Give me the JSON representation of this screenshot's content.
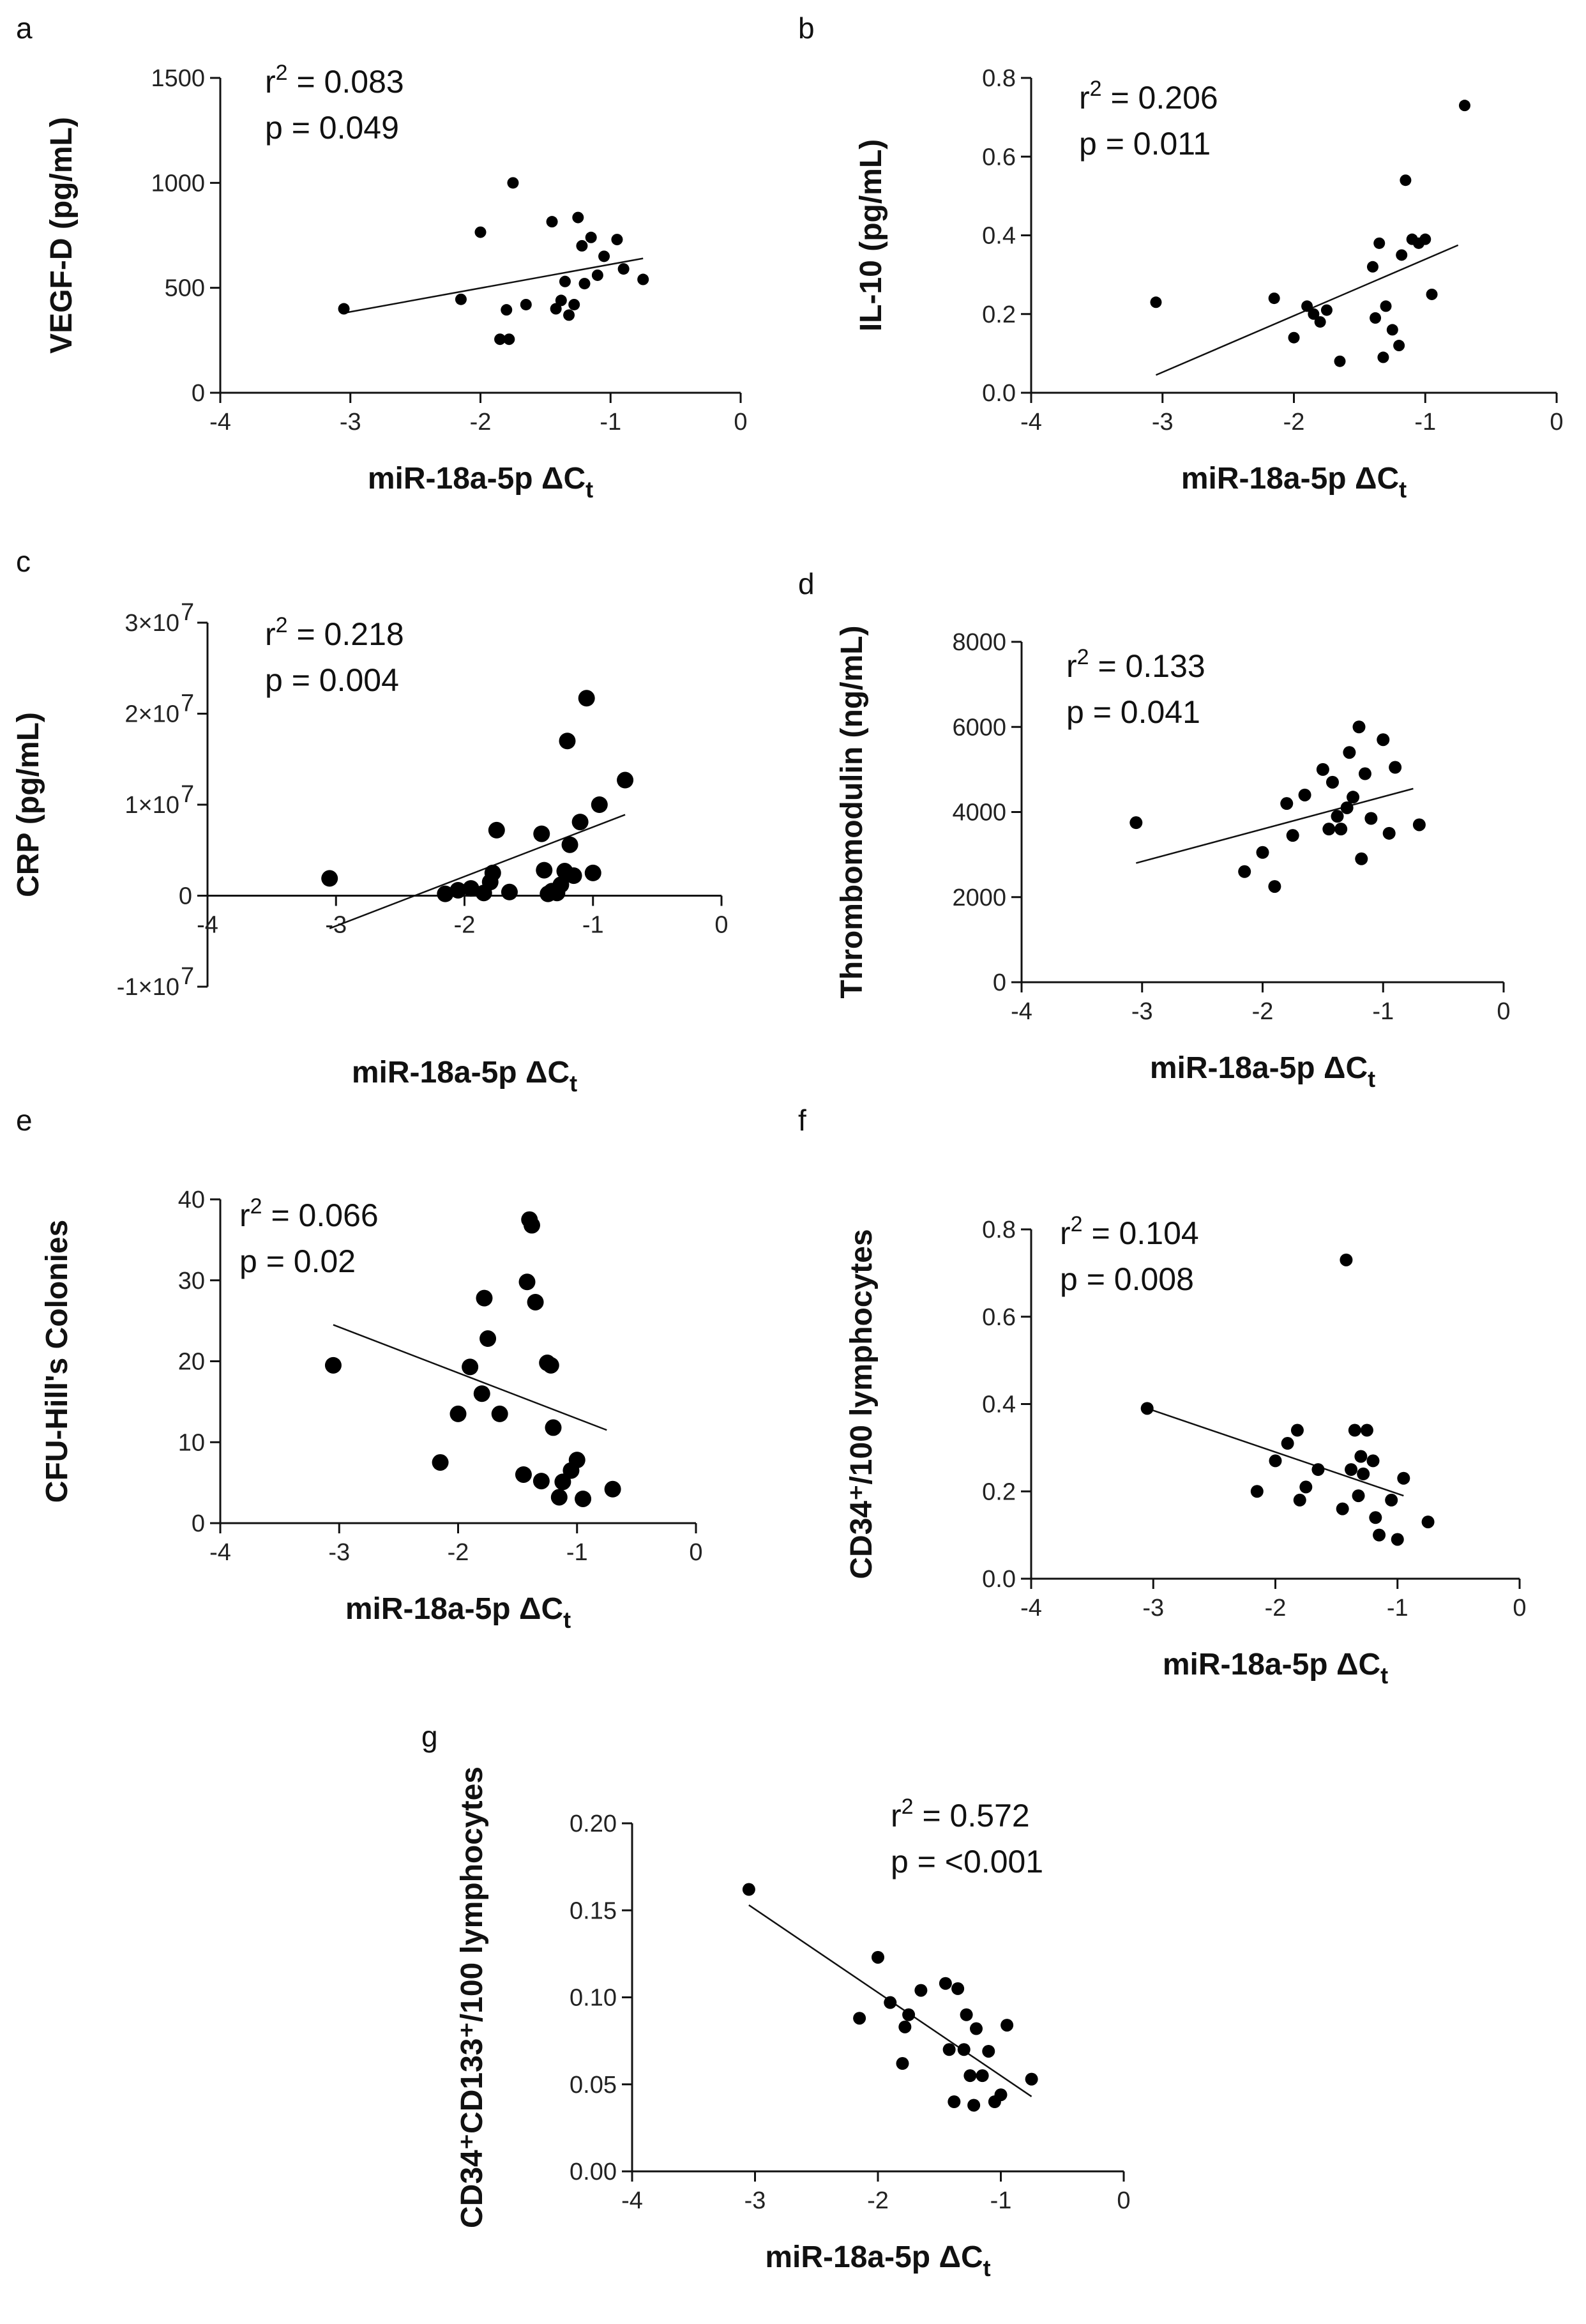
{
  "chart_data": [
    {
      "type": "scatter",
      "panel": "a",
      "ylabel": "VEGF-D (pg/mL)",
      "xlabel": "miR-18a-5p ΔC",
      "xlabel_sub": "t",
      "xlim": [
        -4,
        0
      ],
      "ylim": [
        0,
        1500
      ],
      "xticks": [
        "-4",
        "-3",
        "-2",
        "-1",
        "0"
      ],
      "yticks": [
        "0",
        "500",
        "1000",
        "1500"
      ],
      "r2": "0.083",
      "p": "0.049",
      "points": [
        [
          -3.05,
          400
        ],
        [
          -2.15,
          445
        ],
        [
          -2.0,
          765
        ],
        [
          -1.85,
          255
        ],
        [
          -1.8,
          395
        ],
        [
          -1.78,
          255
        ],
        [
          -1.75,
          1000
        ],
        [
          -1.65,
          420
        ],
        [
          -1.45,
          815
        ],
        [
          -1.42,
          400
        ],
        [
          -1.38,
          440
        ],
        [
          -1.35,
          530
        ],
        [
          -1.32,
          370
        ],
        [
          -1.28,
          420
        ],
        [
          -1.25,
          835
        ],
        [
          -1.22,
          700
        ],
        [
          -1.2,
          520
        ],
        [
          -1.15,
          740
        ],
        [
          -1.1,
          560
        ],
        [
          -1.05,
          650
        ],
        [
          -0.95,
          730
        ],
        [
          -0.9,
          590
        ],
        [
          -0.75,
          540
        ]
      ],
      "fit": [
        [
          -3.05,
          380
        ],
        [
          -0.75,
          640
        ]
      ]
    },
    {
      "type": "scatter",
      "panel": "b",
      "ylabel": "IL-10 (pg/mL)",
      "xlabel": "miR-18a-5p ΔC",
      "xlabel_sub": "t",
      "xlim": [
        -4,
        0
      ],
      "ylim": [
        0,
        0.8
      ],
      "xticks": [
        "-4",
        "-3",
        "-2",
        "-1",
        "0"
      ],
      "yticks": [
        "0.0",
        "0.2",
        "0.4",
        "0.6",
        "0.8"
      ],
      "r2": "0.206",
      "p": "0.011",
      "points": [
        [
          -3.05,
          0.23
        ],
        [
          -2.15,
          0.24
        ],
        [
          -2.0,
          0.14
        ],
        [
          -1.9,
          0.22
        ],
        [
          -1.85,
          0.2
        ],
        [
          -1.8,
          0.18
        ],
        [
          -1.75,
          0.21
        ],
        [
          -1.65,
          0.08
        ],
        [
          -1.4,
          0.32
        ],
        [
          -1.35,
          0.38
        ],
        [
          -1.38,
          0.19
        ],
        [
          -1.32,
          0.09
        ],
        [
          -1.3,
          0.22
        ],
        [
          -1.25,
          0.16
        ],
        [
          -1.2,
          0.12
        ],
        [
          -1.18,
          0.35
        ],
        [
          -1.15,
          0.54
        ],
        [
          -1.1,
          0.39
        ],
        [
          -1.05,
          0.38
        ],
        [
          -1.0,
          0.39
        ],
        [
          -0.95,
          0.25
        ],
        [
          -0.7,
          0.73
        ]
      ],
      "fit": [
        [
          -3.05,
          0.045
        ],
        [
          -0.75,
          0.375
        ]
      ]
    },
    {
      "type": "scatter",
      "panel": "c",
      "ylabel": "CRP (pg/mL)",
      "xlabel": "miR-18a-5p ΔC",
      "xlabel_sub": "t",
      "xlim": [
        -4,
        0
      ],
      "ylim": [
        -10000000,
        30000000
      ],
      "xticks": [
        "-4",
        "-3",
        "-2",
        "-1",
        "0"
      ],
      "yticks": [
        "-1×10",
        "0",
        "1×10",
        "2×10",
        "3×10"
      ],
      "ytick_sup": [
        "7",
        "",
        "7",
        "7",
        "7"
      ],
      "r2": "0.218",
      "p": "0.004",
      "points": [
        [
          -3.05,
          1900000
        ],
        [
          -2.15,
          200000
        ],
        [
          -2.05,
          600000
        ],
        [
          -1.95,
          800000
        ],
        [
          -1.85,
          300000
        ],
        [
          -1.8,
          1500000
        ],
        [
          -1.78,
          2500000
        ],
        [
          -1.75,
          7200000
        ],
        [
          -1.65,
          400000
        ],
        [
          -1.4,
          6800000
        ],
        [
          -1.38,
          2800000
        ],
        [
          -1.35,
          200000
        ],
        [
          -1.32,
          500000
        ],
        [
          -1.28,
          300000
        ],
        [
          -1.25,
          1200000
        ],
        [
          -1.22,
          2700000
        ],
        [
          -1.2,
          17000000
        ],
        [
          -1.18,
          5600000
        ],
        [
          -1.15,
          2200000
        ],
        [
          -1.1,
          8100000
        ],
        [
          -1.05,
          21700000
        ],
        [
          -1.0,
          2500000
        ],
        [
          -0.95,
          10000000
        ],
        [
          -0.75,
          12700000
        ]
      ],
      "fit": [
        [
          -3.05,
          -3600000
        ],
        [
          -0.75,
          8900000
        ]
      ]
    },
    {
      "type": "scatter",
      "panel": "d",
      "ylabel": "Thrombomodulin (ng/mL)",
      "xlabel": "miR-18a-5p ΔC",
      "xlabel_sub": "t",
      "xlim": [
        -4,
        0
      ],
      "ylim": [
        0,
        8000
      ],
      "xticks": [
        "-4",
        "-3",
        "-2",
        "-1",
        "0"
      ],
      "yticks": [
        "0",
        "2000",
        "4000",
        "6000",
        "8000"
      ],
      "r2": "0.133",
      "p": "0.041",
      "points": [
        [
          -3.05,
          3750
        ],
        [
          -2.15,
          2600
        ],
        [
          -2.0,
          3050
        ],
        [
          -1.9,
          2250
        ],
        [
          -1.8,
          4200
        ],
        [
          -1.75,
          3450
        ],
        [
          -1.65,
          4400
        ],
        [
          -1.5,
          5000
        ],
        [
          -1.45,
          3600
        ],
        [
          -1.42,
          4700
        ],
        [
          -1.38,
          3900
        ],
        [
          -1.35,
          3600
        ],
        [
          -1.3,
          4100
        ],
        [
          -1.28,
          5400
        ],
        [
          -1.25,
          4350
        ],
        [
          -1.2,
          6000
        ],
        [
          -1.18,
          2900
        ],
        [
          -1.15,
          4900
        ],
        [
          -1.1,
          3850
        ],
        [
          -1.0,
          5700
        ],
        [
          -0.95,
          3500
        ],
        [
          -0.9,
          5050
        ],
        [
          -0.7,
          3700
        ]
      ],
      "fit": [
        [
          -3.05,
          2800
        ],
        [
          -0.75,
          4550
        ]
      ]
    },
    {
      "type": "scatter",
      "panel": "e",
      "ylabel": "CFU-Hill's Colonies",
      "xlabel": "miR-18a-5p ΔC",
      "xlabel_sub": "t",
      "xlim": [
        -4,
        0
      ],
      "ylim": [
        0,
        40
      ],
      "xticks": [
        "-4",
        "-3",
        "-2",
        "-1",
        "0"
      ],
      "yticks": [
        "0",
        "10",
        "20",
        "30",
        "40"
      ],
      "r2": "0.066",
      "p": "0.02",
      "points": [
        [
          -3.05,
          19.5
        ],
        [
          -2.15,
          7.5
        ],
        [
          -2.0,
          13.5
        ],
        [
          -1.9,
          19.3
        ],
        [
          -1.8,
          16.0
        ],
        [
          -1.78,
          27.8
        ],
        [
          -1.75,
          22.8
        ],
        [
          -1.65,
          13.5
        ],
        [
          -1.45,
          6.0
        ],
        [
          -1.42,
          29.8
        ],
        [
          -1.4,
          37.5
        ],
        [
          -1.38,
          36.8
        ],
        [
          -1.35,
          27.3
        ],
        [
          -1.3,
          5.2
        ],
        [
          -1.25,
          19.8
        ],
        [
          -1.22,
          19.5
        ],
        [
          -1.2,
          11.8
        ],
        [
          -1.15,
          3.2
        ],
        [
          -1.12,
          5.1
        ],
        [
          -1.05,
          6.5
        ],
        [
          -1.0,
          7.8
        ],
        [
          -0.95,
          3.0
        ],
        [
          -0.7,
          4.2
        ]
      ],
      "fit": [
        [
          -3.05,
          24.5
        ],
        [
          -0.75,
          11.5
        ]
      ]
    },
    {
      "type": "scatter",
      "panel": "f",
      "ylabel": "CD34⁺/100 lymphocytes",
      "xlabel": "miR-18a-5p ΔC",
      "xlabel_sub": "t",
      "xlim": [
        -4,
        0
      ],
      "ylim": [
        0,
        0.8
      ],
      "xticks": [
        "-4",
        "-3",
        "-2",
        "-1",
        "0"
      ],
      "yticks": [
        "0.0",
        "0.2",
        "0.4",
        "0.6",
        "0.8"
      ],
      "r2": "0.104",
      "p": "0.008",
      "points": [
        [
          -3.05,
          0.39
        ],
        [
          -2.15,
          0.2
        ],
        [
          -2.0,
          0.27
        ],
        [
          -1.9,
          0.31
        ],
        [
          -1.82,
          0.34
        ],
        [
          -1.8,
          0.18
        ],
        [
          -1.75,
          0.21
        ],
        [
          -1.65,
          0.25
        ],
        [
          -1.45,
          0.16
        ],
        [
          -1.42,
          0.73
        ],
        [
          -1.38,
          0.25
        ],
        [
          -1.35,
          0.34
        ],
        [
          -1.32,
          0.19
        ],
        [
          -1.3,
          0.28
        ],
        [
          -1.28,
          0.24
        ],
        [
          -1.25,
          0.34
        ],
        [
          -1.2,
          0.27
        ],
        [
          -1.18,
          0.14
        ],
        [
          -1.15,
          0.1
        ],
        [
          -1.05,
          0.18
        ],
        [
          -1.0,
          0.09
        ],
        [
          -0.95,
          0.23
        ],
        [
          -0.75,
          0.13
        ]
      ],
      "fit": [
        [
          -3.05,
          0.39
        ],
        [
          -0.95,
          0.19
        ]
      ]
    },
    {
      "type": "scatter",
      "panel": "g",
      "ylabel": "CD34⁺CD133⁺/100 lymphocytes",
      "xlabel": "miR-18a-5p ΔC",
      "xlabel_sub": "t",
      "xlim": [
        -4,
        0
      ],
      "ylim": [
        0,
        0.2
      ],
      "xticks": [
        "-4",
        "-3",
        "-2",
        "-1",
        "0"
      ],
      "yticks": [
        "0.00",
        "0.05",
        "0.10",
        "0.15",
        "0.20"
      ],
      "r2": "0.572",
      "p": "<0.001",
      "points": [
        [
          -3.05,
          0.162
        ],
        [
          -2.15,
          0.088
        ],
        [
          -2.0,
          0.123
        ],
        [
          -1.9,
          0.097
        ],
        [
          -1.8,
          0.062
        ],
        [
          -1.78,
          0.083
        ],
        [
          -1.75,
          0.09
        ],
        [
          -1.65,
          0.104
        ],
        [
          -1.45,
          0.108
        ],
        [
          -1.42,
          0.07
        ],
        [
          -1.38,
          0.04
        ],
        [
          -1.35,
          0.105
        ],
        [
          -1.3,
          0.07
        ],
        [
          -1.28,
          0.09
        ],
        [
          -1.25,
          0.055
        ],
        [
          -1.22,
          0.038
        ],
        [
          -1.2,
          0.082
        ],
        [
          -1.15,
          0.055
        ],
        [
          -1.1,
          0.069
        ],
        [
          -1.05,
          0.04
        ],
        [
          -1.0,
          0.044
        ],
        [
          -0.95,
          0.084
        ],
        [
          -0.75,
          0.053
        ]
      ],
      "fit": [
        [
          -3.05,
          0.153
        ],
        [
          -0.75,
          0.043
        ]
      ]
    }
  ]
}
